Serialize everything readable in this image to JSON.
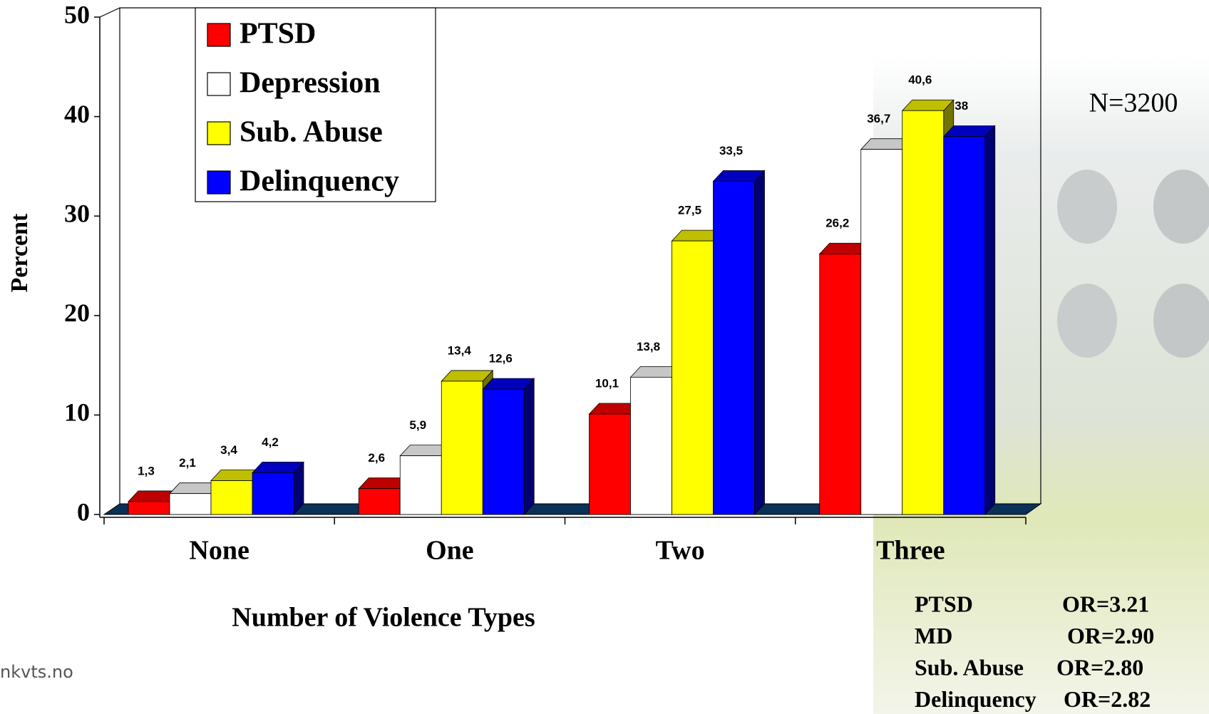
{
  "chart_data": {
    "type": "bar3d",
    "x_label": "Number of Violence Types",
    "y_label": "Percent",
    "categories": [
      "None",
      "One",
      "Two",
      "Three"
    ],
    "series": [
      {
        "name": "PTSD",
        "color": "#ff0000",
        "values": [
          1.3,
          2.6,
          10.1,
          26.2
        ],
        "value_labels": [
          "1,3",
          "2,6",
          "10,1",
          "26,2"
        ]
      },
      {
        "name": "Depression",
        "color": "#ffffff",
        "values": [
          2.1,
          5.9,
          13.8,
          36.7
        ],
        "value_labels": [
          "2,1",
          "5,9",
          "13,8",
          "36,7"
        ]
      },
      {
        "name": "Sub. Abuse",
        "color": "#ffff00",
        "values": [
          3.4,
          13.4,
          27.5,
          40.6
        ],
        "value_labels": [
          "3,4",
          "13,4",
          "27,5",
          "40,6"
        ]
      },
      {
        "name": "Delinquency",
        "color": "#0000ff",
        "values": [
          4.2,
          12.6,
          33.5,
          38
        ],
        "value_labels": [
          "4,2",
          "12,6",
          "33,5",
          "38"
        ]
      }
    ],
    "ylim": [
      0,
      50
    ],
    "yticks": [
      0,
      10,
      20,
      30,
      40,
      50
    ],
    "legend": "top-left",
    "sample_note": "N=3200",
    "or_table": [
      [
        "PTSD",
        "OR=3.21"
      ],
      [
        "MD",
        "OR=2.90"
      ],
      [
        "Sub. Abuse",
        "OR=2.80"
      ],
      [
        "Delinquency",
        "OR=2.82"
      ]
    ],
    "footer": "nkvts.no"
  }
}
